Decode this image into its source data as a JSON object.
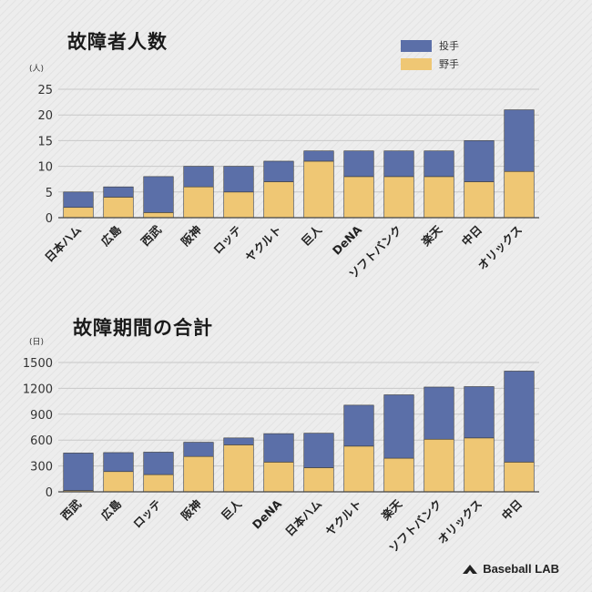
{
  "colors": {
    "pitcher": "#5b6fa8",
    "fielder": "#efc774",
    "axis": "#444444",
    "grid": "#c8c8c8"
  },
  "legend": {
    "pitcher": "投手",
    "fielder": "野手"
  },
  "logo": {
    "text": "Baseball LAB",
    "icon": "baseball-lab-logo-icon"
  },
  "chart_data": [
    {
      "type": "bar",
      "stacked": true,
      "title": "故障者人数",
      "unit_label": "(人)",
      "ylim": [
        0,
        25
      ],
      "yticks": [
        0,
        5,
        10,
        15,
        20,
        25
      ],
      "grid": true,
      "legend_position": "top-right",
      "categories": [
        "日本ハム",
        "広島",
        "西武",
        "阪神",
        "ロッテ",
        "ヤクルト",
        "巨人",
        "DeNA",
        "ソフトバンク",
        "楽天",
        "中日",
        "オリックス"
      ],
      "series": [
        {
          "name": "野手",
          "values": [
            2,
            4,
            1,
            6,
            5,
            7,
            11,
            8,
            8,
            8,
            7,
            9
          ]
        },
        {
          "name": "投手",
          "values": [
            3,
            2,
            7,
            4,
            5,
            4,
            2,
            5,
            5,
            5,
            8,
            12
          ]
        }
      ]
    },
    {
      "type": "bar",
      "stacked": true,
      "title": "故障期間の合計",
      "unit_label": "(日)",
      "ylim": [
        0,
        1500
      ],
      "yticks": [
        0,
        300,
        600,
        900,
        1200,
        1500
      ],
      "grid": true,
      "categories": [
        "西武",
        "広島",
        "ロッテ",
        "阪神",
        "巨人",
        "DeNA",
        "日本ハム",
        "ヤクルト",
        "楽天",
        "ソフトバンク",
        "オリックス",
        "中日"
      ],
      "series": [
        {
          "name": "野手",
          "values": [
            15,
            235,
            200,
            410,
            545,
            345,
            280,
            530,
            390,
            610,
            625,
            345
          ]
        },
        {
          "name": "投手",
          "values": [
            435,
            220,
            260,
            165,
            80,
            330,
            400,
            475,
            735,
            605,
            595,
            1055
          ]
        }
      ]
    }
  ]
}
